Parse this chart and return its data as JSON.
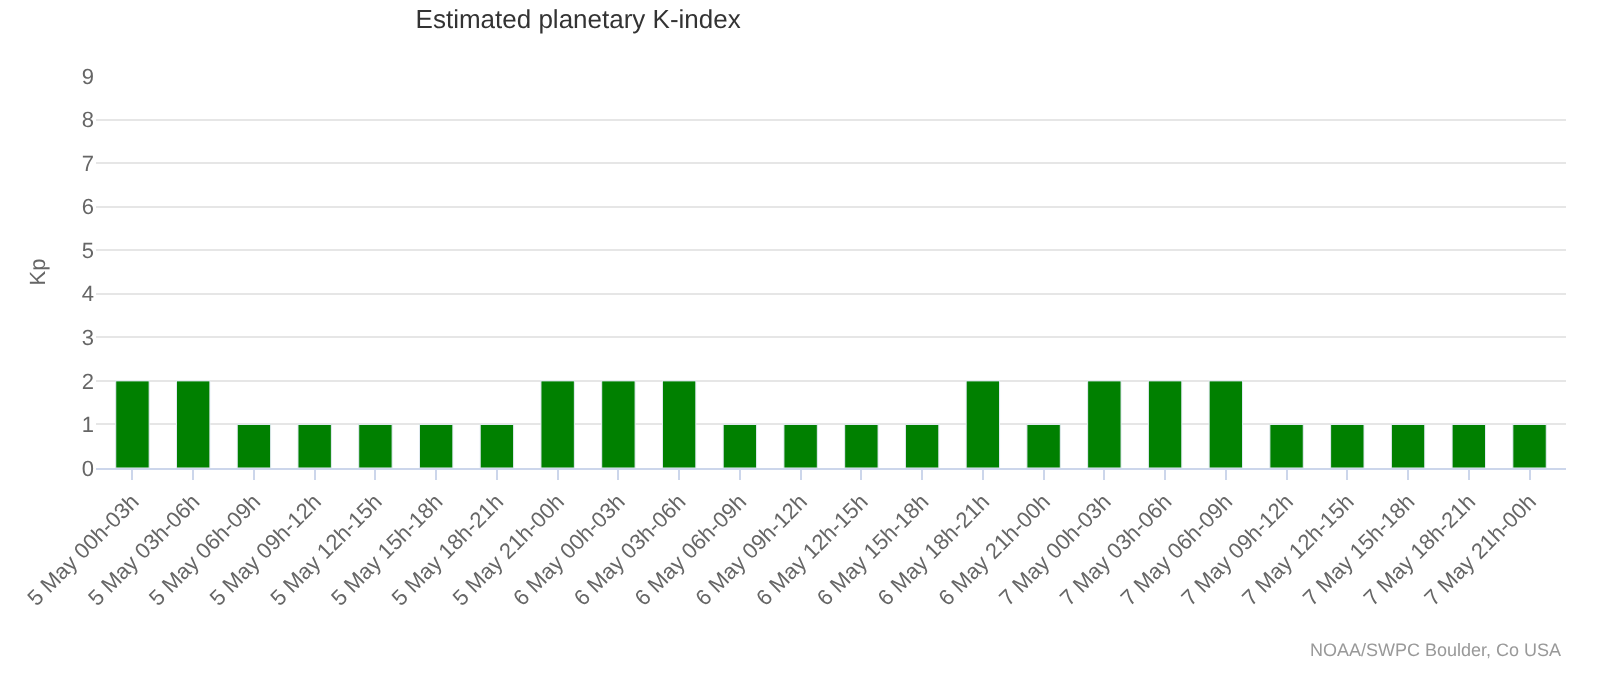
{
  "chart_data": {
    "type": "bar",
    "title": "Estimated planetary K-index",
    "ylabel": "Kp",
    "categories": [
      "5 May 00h-03h",
      "5 May 03h-06h",
      "5 May 06h-09h",
      "5 May 09h-12h",
      "5 May 12h-15h",
      "5 May 15h-18h",
      "5 May 18h-21h",
      "5 May 21h-00h",
      "6 May 00h-03h",
      "6 May 03h-06h",
      "6 May 06h-09h",
      "6 May 09h-12h",
      "6 May 12h-15h",
      "6 May 15h-18h",
      "6 May 18h-21h",
      "6 May 21h-00h",
      "7 May 00h-03h",
      "7 May 03h-06h",
      "7 May 06h-09h",
      "7 May 09h-12h",
      "7 May 12h-15h",
      "7 May 15h-18h",
      "7 May 18h-21h",
      "7 May 21h-00h"
    ],
    "values": [
      2,
      2,
      1,
      1,
      1,
      1,
      1,
      2,
      2,
      2,
      1,
      1,
      1,
      1,
      2,
      1,
      2,
      2,
      2,
      1,
      1,
      1,
      1,
      1
    ],
    "color": "#008000",
    "ylim": [
      0,
      9
    ],
    "yticks": [
      0,
      1,
      2,
      3,
      4,
      5,
      6,
      7,
      8,
      9
    ],
    "grid": "y",
    "annotations": [
      "NOAA/SWPC Boulder, Co USA"
    ]
  }
}
